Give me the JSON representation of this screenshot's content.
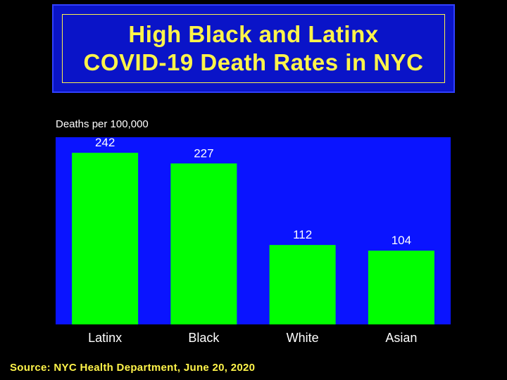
{
  "title": {
    "line1": "High Black and Latinx",
    "line2": "COVID-19 Death Rates in NYC"
  },
  "colors": {
    "background": "#000000",
    "plot_area": "#0a14ff",
    "bar": "#00ff00",
    "title_text": "#fff44a",
    "title_box": "#0a14c8"
  },
  "source": "Source: NYC Health Department, June 20, 2020",
  "chart_data": {
    "type": "bar",
    "ylabel": "Deaths per 100,000",
    "xlabel": "",
    "categories": [
      "Latinx",
      "Black",
      "White",
      "Asian"
    ],
    "values": [
      242,
      227,
      112,
      104
    ],
    "value_labels": [
      "242",
      "227",
      "112",
      "104"
    ],
    "ylim": [
      0,
      264
    ],
    "grid": false,
    "legend": "none"
  }
}
